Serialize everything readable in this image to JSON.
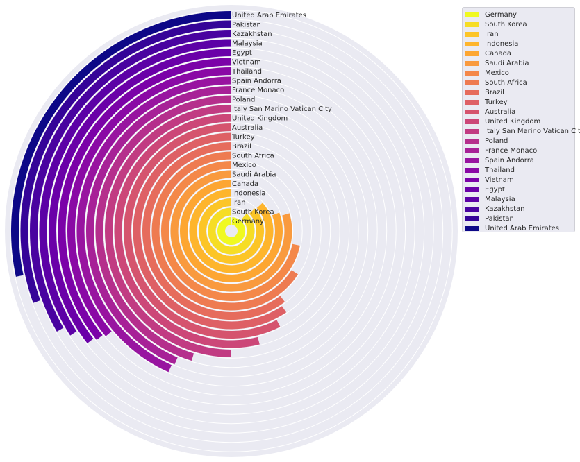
{
  "chart_data": {
    "type": "bar",
    "subtype": "radial-bar (polar, bars start at 12 o'clock, counter-clockwise)",
    "title": "",
    "xlabel": "",
    "ylabel": "",
    "grid": true,
    "legend_position": "upper right outside",
    "value_unit": "degrees of arc (estimated from pixels)",
    "categories": [
      "Germany",
      "South Korea",
      "Iran",
      "Indonesia",
      "Canada",
      "Saudi Arabia",
      "Mexico",
      "South Africa",
      "Brazil",
      "Turkey",
      "Australia",
      "United Kingdom",
      "Italy San Marino Vatican City",
      "Poland",
      "France Monaco",
      "Spain Andorra",
      "Thailand",
      "Vietnam",
      "Egypt",
      "Malaysia",
      "Kazakhstan",
      "Pakistan",
      "United Arab Emirates"
    ],
    "values": [
      356,
      319,
      314,
      312,
      291,
      287,
      258,
      237,
      217,
      214,
      207,
      194,
      180,
      163,
      157,
      156,
      130,
      129,
      128,
      123,
      120,
      110,
      102
    ],
    "colors": [
      "#f0f921",
      "#f6dd25",
      "#fcc527",
      "#feb52c",
      "#fda632",
      "#f99a3e",
      "#f48849",
      "#ee7b51",
      "#e66c5c",
      "#de6065",
      "#d5546e",
      "#cc4778",
      "#c13b82",
      "#b52f8c",
      "#a72197",
      "#9814a0",
      "#8a09a5",
      "#7b02a8",
      "#6a00a8",
      "#5c01a6",
      "#4903a0",
      "#350498",
      "#0d0887"
    ]
  },
  "legend": {
    "items": [
      "Germany",
      "South Korea",
      "Iran",
      "Indonesia",
      "Canada",
      "Saudi Arabia",
      "Mexico",
      "South Africa",
      "Brazil",
      "Turkey",
      "Australia",
      "United Kingdom",
      "Italy San Marino Vatican City",
      "Poland",
      "France Monaco",
      "Spain Andorra",
      "Thailand",
      "Vietnam",
      "Egypt",
      "Malaysia",
      "Kazakhstan",
      "Pakistan",
      "United Arab Emirates"
    ]
  },
  "style": {
    "background": "#eaeaf2",
    "grid_color": "#ffffff"
  }
}
